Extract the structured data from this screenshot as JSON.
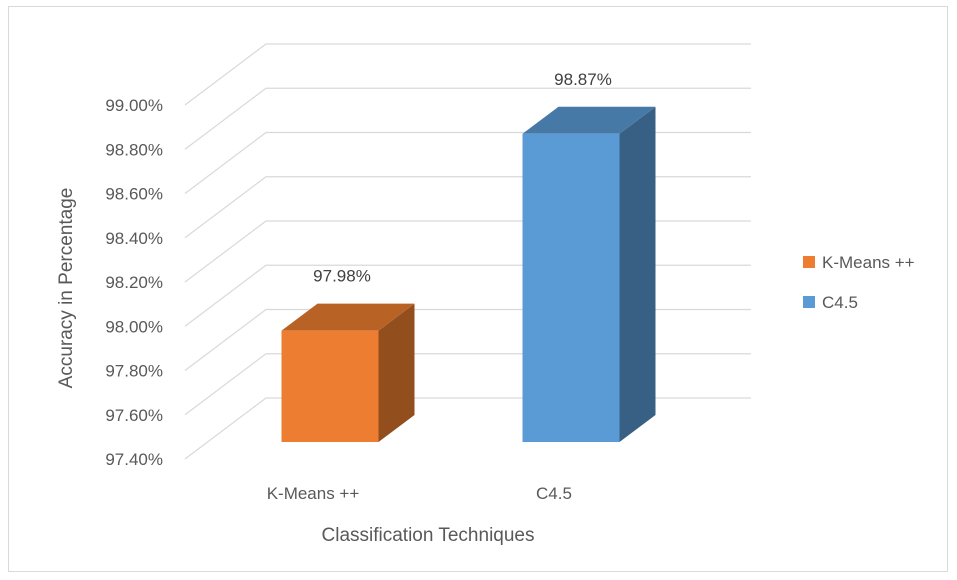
{
  "chart_data": {
    "type": "bar",
    "style": "3d-column",
    "categories": [
      "K-Means ++",
      "C4.5"
    ],
    "values": [
      97.98,
      98.87
    ],
    "value_labels": [
      "97.98%",
      "98.87%"
    ],
    "series": [
      {
        "name": "K-Means ++",
        "values": [
          97.98,
          null
        ],
        "color": "#ED7D31"
      },
      {
        "name": "C4.5",
        "values": [
          null,
          98.87
        ],
        "color": "#5B9BD5"
      }
    ],
    "xlabel": "Classification Techniques",
    "ylabel": "Accuracy in Percentage",
    "ylim": [
      97.4,
      99.0
    ],
    "yticks": [
      "97.40%",
      "97.60%",
      "97.80%",
      "98.00%",
      "98.20%",
      "98.40%",
      "98.60%",
      "98.80%",
      "99.00%"
    ],
    "grid": true,
    "legend_position": "right"
  }
}
